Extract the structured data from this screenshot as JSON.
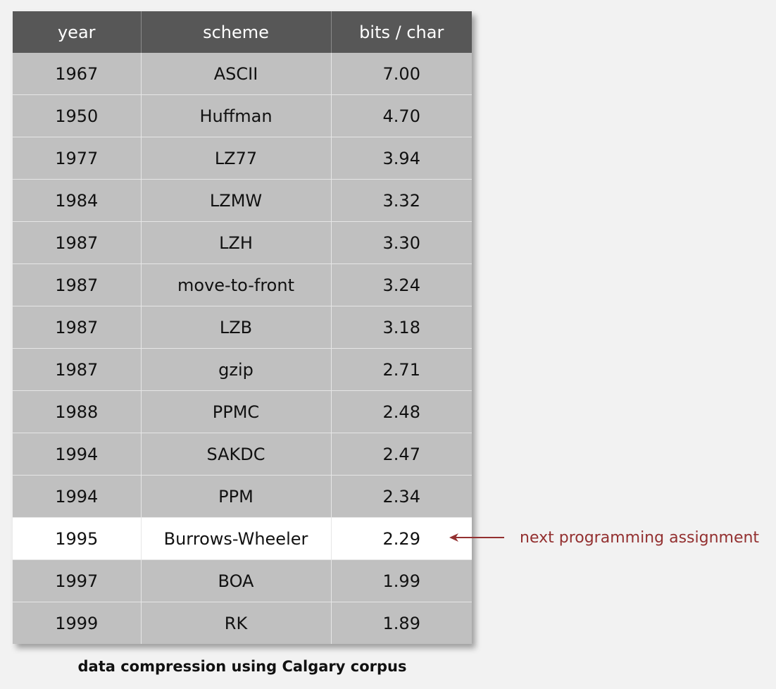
{
  "table": {
    "columns": [
      "year",
      "scheme",
      "bits / char"
    ],
    "rows": [
      {
        "year": "1967",
        "scheme": "ASCII",
        "bits": "7.00"
      },
      {
        "year": "1950",
        "scheme": "Huffman",
        "bits": "4.70"
      },
      {
        "year": "1977",
        "scheme": "LZ77",
        "bits": "3.94"
      },
      {
        "year": "1984",
        "scheme": "LZMW",
        "bits": "3.32"
      },
      {
        "year": "1987",
        "scheme": "LZH",
        "bits": "3.30"
      },
      {
        "year": "1987",
        "scheme": "move-to-front",
        "bits": "3.24"
      },
      {
        "year": "1987",
        "scheme": "LZB",
        "bits": "3.18"
      },
      {
        "year": "1987",
        "scheme": "gzip",
        "bits": "2.71"
      },
      {
        "year": "1988",
        "scheme": "PPMC",
        "bits": "2.48"
      },
      {
        "year": "1994",
        "scheme": "SAKDC",
        "bits": "2.47"
      },
      {
        "year": "1994",
        "scheme": "PPM",
        "bits": "2.34"
      },
      {
        "year": "1995",
        "scheme": "Burrows-Wheeler",
        "bits": "2.29"
      },
      {
        "year": "1997",
        "scheme": "BOA",
        "bits": "1.99"
      },
      {
        "year": "1999",
        "scheme": "RK",
        "bits": "1.89"
      }
    ],
    "highlighted_row": 11
  },
  "annotation": {
    "text": "next programming assignment"
  },
  "caption": "data compression using Calgary corpus",
  "colors": {
    "header_bg": "#575757",
    "row_bg": "#c0c0c0",
    "highlight_bg": "#ffffff",
    "annotation": "#933030",
    "page_bg": "#f2f2f2"
  },
  "icons": {
    "annotation_arrow": "left-arrow-icon"
  }
}
